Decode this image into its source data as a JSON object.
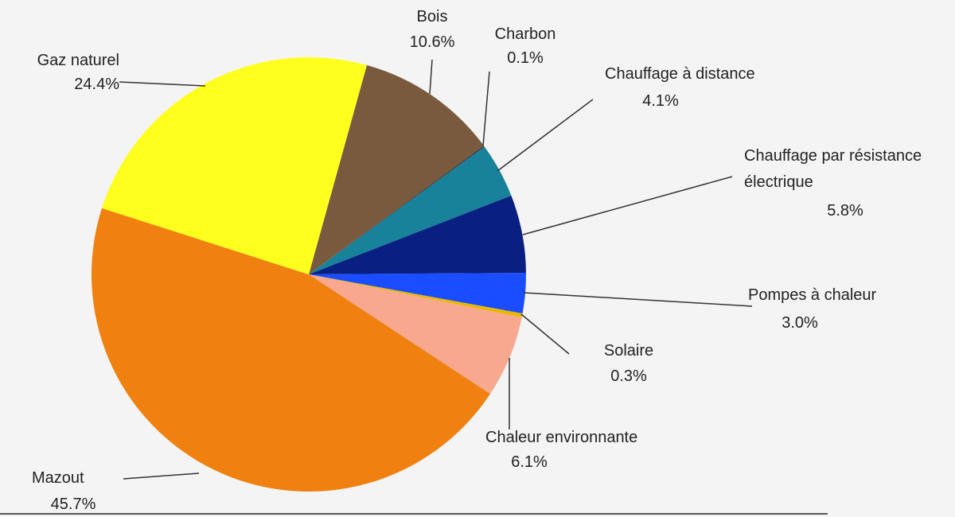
{
  "chart_data": {
    "type": "pie",
    "categories": [
      "Bois",
      "Charbon",
      "Chauffage à distance",
      "Chauffage par résistance électrique",
      "Pompes à chaleur",
      "Solaire",
      "Chaleur environnante",
      "Mazout",
      "Gaz naturel"
    ],
    "values": [
      10.6,
      0.1,
      4.1,
      5.8,
      3.0,
      0.3,
      6.1,
      45.7,
      24.4
    ],
    "value_labels": [
      "10.6%",
      "0.1%",
      "4.1%",
      "5.8%",
      "3.0%",
      "0.3%",
      "6.1%",
      "45.7%",
      "24.4%"
    ],
    "colors": [
      "#7a5a3e",
      "#3a3a3a",
      "#17829a",
      "#0a1f82",
      "#1a4dff",
      "#e8b800",
      "#f8a88e",
      "#f08010",
      "#ffff1e"
    ]
  }
}
